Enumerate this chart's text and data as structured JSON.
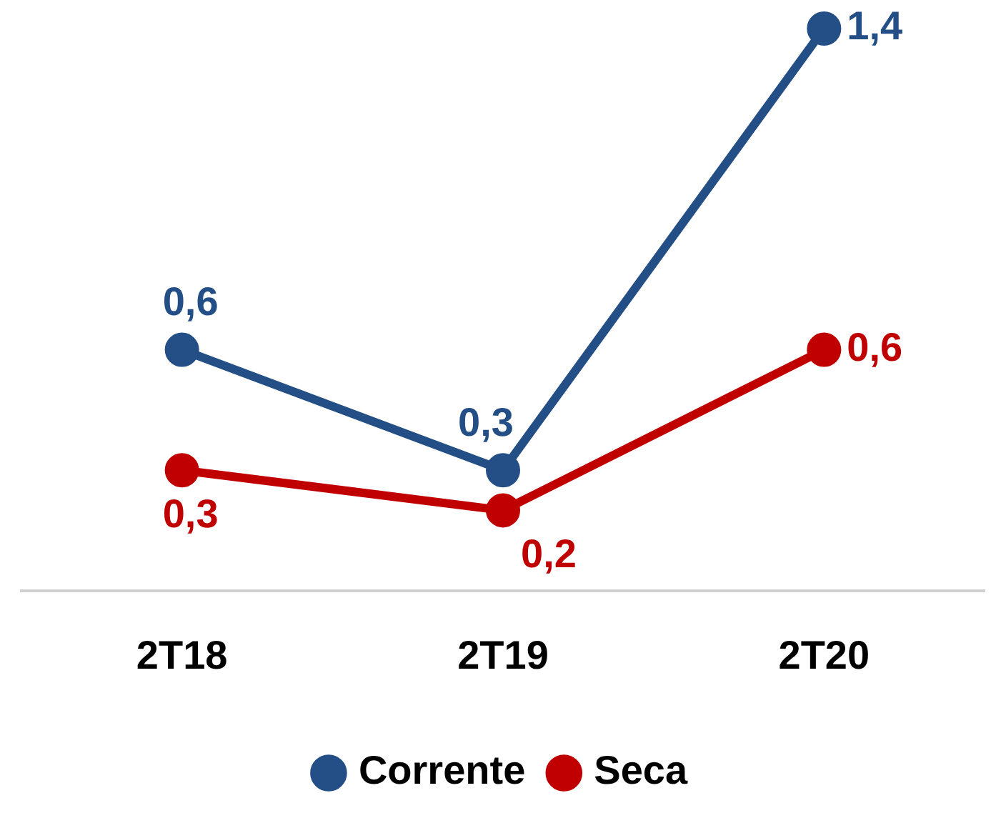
{
  "chart_data": {
    "type": "line",
    "categories": [
      "2T18",
      "2T19",
      "2T20"
    ],
    "series": [
      {
        "name": "Corrente",
        "color": "#234f86",
        "values": [
          0.6,
          0.3,
          1.4
        ],
        "value_labels": [
          "0,6",
          "0,3",
          "1,4"
        ]
      },
      {
        "name": "Seca",
        "color": "#c00000",
        "values": [
          0.3,
          0.2,
          0.6
        ],
        "value_labels": [
          "0,3",
          "0,2",
          "0,6"
        ]
      }
    ],
    "legend": "bottom",
    "grid": false,
    "marker": "circle",
    "line_style": "solid"
  }
}
